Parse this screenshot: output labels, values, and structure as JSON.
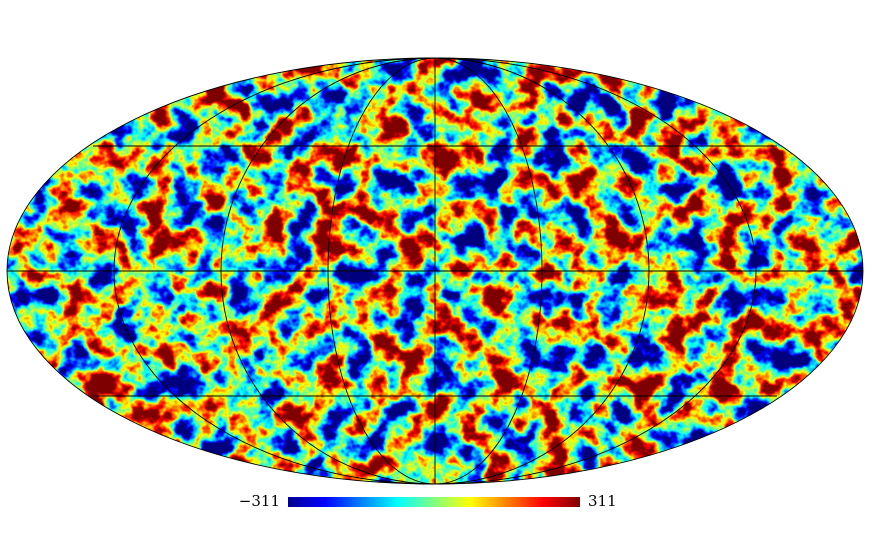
{
  "map": {
    "projection": "mollweide",
    "colorbar": {
      "ticks": [
        {
          "value": -311,
          "label": "−311"
        },
        311
      ]
    }
  }
}
